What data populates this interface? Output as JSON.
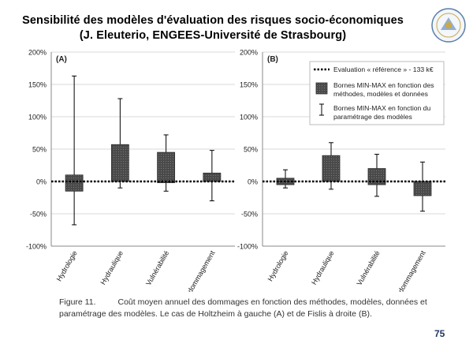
{
  "header": {
    "title_line1": "Sensibilité des modèles d'évaluation des risques socio-économiques",
    "title_line2": "(J. Eleuterio, ENGEES-Université de Strasbourg)"
  },
  "chart_data": [
    {
      "type": "bar",
      "panel_label": "(A)",
      "categories": [
        "Hydrologie",
        "Hydraulique",
        "Vulnérabilité",
        "Endommagement"
      ],
      "ylim": [
        -100,
        200
      ],
      "yticks": [
        -100,
        -50,
        0,
        50,
        100,
        150,
        200
      ],
      "ytick_labels": [
        "-100%",
        "-50%",
        "0%",
        "50%",
        "100%",
        "150%",
        "200%"
      ],
      "reference_line": 0,
      "series": [
        {
          "name": "Bornes MIN-MAX en fonction des méthodes, modèles et données",
          "kind": "box",
          "low": [
            -15,
            0,
            -2,
            0
          ],
          "high": [
            10,
            57,
            45,
            13
          ]
        },
        {
          "name": "Bornes MIN-MAX en fonction du paramétrage des modèles",
          "kind": "whisker",
          "low": [
            -67,
            -10,
            -15,
            -30
          ],
          "high": [
            163,
            128,
            72,
            48
          ]
        }
      ],
      "grid": true,
      "legend": null
    },
    {
      "type": "bar",
      "panel_label": "(B)",
      "categories": [
        "Hydrologie",
        "Hydraulique",
        "Vulnérabilité",
        "Endommagement"
      ],
      "ylim": [
        -100,
        200
      ],
      "yticks": [
        -100,
        -50,
        0,
        50,
        100,
        150,
        200
      ],
      "ytick_labels": [
        "-100%",
        "-50%",
        "0%",
        "50%",
        "100%",
        "150%",
        "200%"
      ],
      "reference_line": 0,
      "series": [
        {
          "name": "Bornes MIN-MAX en fonction des méthodes, modèles et données",
          "kind": "box",
          "low": [
            -5,
            0,
            -5,
            -22
          ],
          "high": [
            5,
            40,
            20,
            0
          ]
        },
        {
          "name": "Bornes MIN-MAX en fonction du paramétrage des modèles",
          "kind": "whisker",
          "low": [
            -10,
            -12,
            -23,
            -46
          ],
          "high": [
            18,
            60,
            42,
            30
          ]
        }
      ],
      "grid": true,
      "legend": {
        "placement": "top-right",
        "entries": [
          {
            "marker": "dotted-line",
            "lines": [
              "Evaluation « référence » - 133 k€"
            ]
          },
          {
            "marker": "box",
            "lines": [
              "Bornes MIN-MAX en fonction des",
              "méthodes, modèles et données"
            ]
          },
          {
            "marker": "whisker",
            "lines": [
              "Bornes MIN-MAX en fonction du",
              "paramétrage des modèles"
            ]
          }
        ]
      }
    }
  ],
  "caption": {
    "label": "Figure 11.",
    "text_line1": "Coût moyen annuel des dommages en fonction des méthodes, modèles, données et",
    "text_line2": "paramétrage des modèles. Le cas de Holtzheim à gauche (A) et de Fislis à droite (B)."
  },
  "page_number": "75",
  "colors": {
    "box_fill": "#4a4a4a",
    "grid": "#d9d9d9",
    "axis": "#888888",
    "text": "#222222",
    "page_number": "#1f3864"
  },
  "logo": {
    "icon": "institution-logo"
  }
}
